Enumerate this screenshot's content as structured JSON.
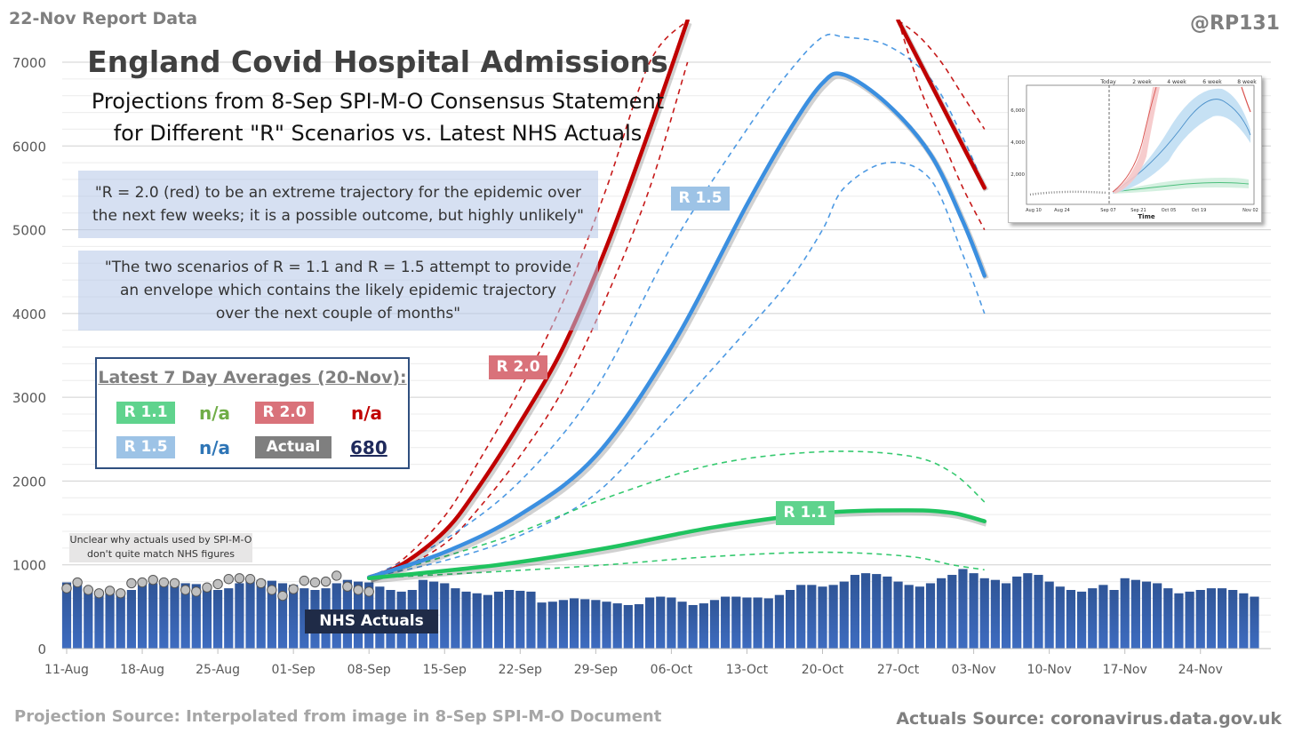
{
  "header": {
    "report_label": "22-Nov Report Data",
    "handle": "@RP131"
  },
  "titles": {
    "title": "England Covid Hospital Admissions",
    "subtitle_line1": "Projections from 8-Sep SPI-M-O Consensus Statement",
    "subtitle_line2": "for Different \"R\" Scenarios vs. Latest NHS Actuals"
  },
  "quotes": {
    "q1_line1": "\"R = 2.0 (red) to be an extreme trajectory for the epidemic over",
    "q1_line2": "the next few weeks; it is a possible outcome, but highly unlikely\"",
    "q2_line1": "\"The two scenarios of R = 1.1 and R = 1.5 attempt to provide",
    "q2_line2": "an envelope which contains the likely epidemic trajectory",
    "q2_line3": "over the next couple of months\""
  },
  "legend": {
    "title": "Latest 7 Day Averages (20-Nov):",
    "items": [
      {
        "label": "R 1.1",
        "value": "n/a",
        "chip_color": "#5fd38d",
        "value_color": "#70ad47"
      },
      {
        "label": "R 2.0",
        "value": "n/a",
        "chip_color": "#d9727a",
        "value_color": "#c00000"
      },
      {
        "label": "R 1.5",
        "value": "n/a",
        "chip_color": "#9dc3e6",
        "value_color": "#2e75b6"
      },
      {
        "label": "Actual",
        "value": "680",
        "chip_color": "#7f7f7f",
        "value_color": "#1f2a5c"
      }
    ]
  },
  "series_tags": {
    "r15": "R 1.5",
    "r20": "R 2.0",
    "r11": "R 1.1",
    "actuals": "NHS Actuals"
  },
  "note": {
    "line1": "Unclear why actuals used by SPI-M-O",
    "line2": "don't quite match NHS figures"
  },
  "sources": {
    "left": "Projection Source: Interpolated from image in 8-Sep SPI-M-O Document",
    "right": "Actuals Source: coronavirus.data.gov.uk"
  },
  "inset": {
    "header_labels": [
      "Today",
      "2 week",
      "4 week",
      "6 week",
      "8 week"
    ],
    "y_ticks": [
      "6,000",
      "4,000",
      "2,000"
    ],
    "x_ticks": [
      "Aug 10",
      "Aug 24",
      "Sep 07",
      "Sep 21",
      "Oct 05",
      "Oct 19",
      "Nov 02"
    ],
    "xlabel": "Time"
  },
  "colors": {
    "bars": "#2f5597",
    "r20": "#c00000",
    "r15": "#3b8fe0",
    "r11": "#1fc35f",
    "spim_actual_marker": "#bfbfbf"
  },
  "chart_data": {
    "type": "bar",
    "title": "England Covid Hospital Admissions",
    "xlabel": "",
    "ylabel": "",
    "ylim": [
      0,
      7000
    ],
    "yticks": [
      0,
      1000,
      2000,
      3000,
      4000,
      5000,
      6000,
      7000
    ],
    "x_tick_labels": [
      "11-Aug",
      "18-Aug",
      "25-Aug",
      "01-Sep",
      "08-Sep",
      "15-Sep",
      "22-Sep",
      "29-Sep",
      "06-Oct",
      "13-Oct",
      "20-Oct",
      "27-Oct",
      "03-Nov",
      "10-Nov",
      "17-Nov",
      "24-Nov"
    ],
    "start_date": "11-Aug",
    "nhs_actuals": [
      790,
      760,
      730,
      690,
      660,
      660,
      700,
      760,
      780,
      790,
      790,
      780,
      770,
      740,
      700,
      720,
      780,
      800,
      820,
      810,
      780,
      760,
      720,
      700,
      720,
      780,
      820,
      800,
      790,
      740,
      700,
      680,
      700,
      820,
      800,
      780,
      720,
      680,
      660,
      640,
      680,
      700,
      690,
      680,
      550,
      560,
      580,
      600,
      590,
      580,
      560,
      540,
      520,
      530,
      610,
      620,
      610,
      560,
      520,
      540,
      580,
      620,
      620,
      610,
      610,
      600,
      640,
      700,
      760,
      760,
      740,
      760,
      800,
      880,
      900,
      890,
      860,
      800,
      760,
      740,
      780,
      840,
      880,
      950,
      900,
      840,
      820,
      780,
      860,
      900,
      880,
      800,
      740,
      700,
      680,
      720,
      760,
      700,
      840,
      820,
      800,
      780,
      720,
      660,
      680,
      700,
      720,
      720,
      700,
      660,
      620
    ],
    "spim_actuals": [
      720,
      790,
      700,
      660,
      690,
      660,
      780,
      790,
      820,
      790,
      780,
      700,
      680,
      730,
      770,
      830,
      840,
      830,
      780,
      700,
      630,
      710,
      810,
      790,
      800,
      870,
      740,
      700,
      680
    ],
    "series": [
      {
        "name": "R 2.0",
        "x": [
          28,
          31,
          35,
          38,
          42,
          46,
          50,
          54,
          57.5
        ],
        "values": [
          850,
          1000,
          1400,
          1900,
          2700,
          3600,
          4800,
          6200,
          7500
        ],
        "lower": [
          850,
          960,
          1250,
          1650,
          2300,
          3100,
          4200,
          5500,
          7000
        ],
        "upper": [
          850,
          1050,
          1580,
          2200,
          3100,
          4150,
          5500,
          7000,
          7500
        ]
      },
      {
        "name": "R 2.0 (late)",
        "x": [
          77,
          79,
          81,
          83,
          85
        ],
        "values": [
          7500,
          7000,
          6500,
          6000,
          5500
        ],
        "lower": [
          7500,
          6700,
          6100,
          5500,
          5000
        ],
        "upper": [
          7500,
          7300,
          7000,
          6600,
          6200
        ]
      },
      {
        "name": "R 1.5",
        "x": [
          28,
          35,
          42,
          49,
          56,
          63,
          67,
          70,
          72,
          76,
          80,
          83,
          85
        ],
        "values": [
          850,
          1150,
          1600,
          2300,
          3600,
          5300,
          6200,
          6750,
          6850,
          6500,
          5900,
          5100,
          4450
        ],
        "lower": [
          850,
          1050,
          1350,
          1850,
          2800,
          3800,
          4400,
          5000,
          5500,
          5800,
          5600,
          4700,
          4000
        ],
        "upper": [
          850,
          1300,
          2000,
          3100,
          4800,
          6200,
          6900,
          7300,
          7300,
          7200,
          6800,
          6100,
          5500
        ]
      },
      {
        "name": "R 1.1",
        "x": [
          28,
          40,
          50,
          60,
          70,
          78,
          82,
          85
        ],
        "values": [
          840,
          1000,
          1200,
          1450,
          1620,
          1650,
          1620,
          1520
        ],
        "lower": [
          840,
          920,
          1000,
          1100,
          1150,
          1100,
          1000,
          940
        ],
        "upper": [
          840,
          1300,
          1800,
          2200,
          2350,
          2300,
          2100,
          1750
        ]
      }
    ]
  }
}
